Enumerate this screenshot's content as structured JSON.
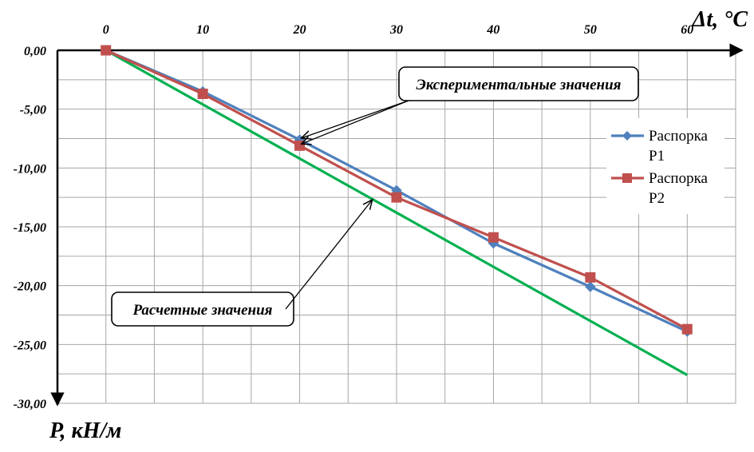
{
  "chart_data": {
    "type": "line",
    "xlabel": "Δt, °C",
    "ylabel": "P, кН/м",
    "x": [
      0,
      10,
      20,
      30,
      40,
      50,
      60
    ],
    "x_tick_labels": [
      "0",
      "10",
      "20",
      "30",
      "40",
      "50",
      "60"
    ],
    "y_tick_labels": [
      "0,00",
      "-5,00",
      "-10,00",
      "-15,00",
      "-20,00",
      "-25,00",
      "-30,00"
    ],
    "xlim": [
      -5,
      65
    ],
    "ylim": [
      -30,
      0
    ],
    "grid": true,
    "legend_position": "right",
    "series": [
      {
        "name": "Распорка Р1",
        "legend_lines": [
          "Распорка",
          "Р1"
        ],
        "values": [
          0,
          -3.5,
          -7.6,
          -11.9,
          -16.4,
          -20.1,
          -23.9
        ],
        "color": "#4F81BD",
        "marker": "diamond"
      },
      {
        "name": "Распорка Р2",
        "legend_lines": [
          "Распорка",
          "Р2"
        ],
        "values": [
          0,
          -3.7,
          -8.1,
          -12.5,
          -15.9,
          -19.3,
          -23.7
        ],
        "color": "#C0504D",
        "marker": "square"
      },
      {
        "values": [
          0,
          -4.6,
          -9.2,
          -13.8,
          -18.4,
          -23.0,
          -27.6
        ],
        "color": "#00B050",
        "marker": "none"
      }
    ],
    "annotations": [
      {
        "text": "Экспериментальные значения",
        "targets": [
          [
            20,
            -7.6
          ],
          [
            20,
            -8.1
          ]
        ]
      },
      {
        "text": "Расчетные значения",
        "targets": [
          [
            27.5,
            -12.7
          ]
        ]
      }
    ]
  }
}
